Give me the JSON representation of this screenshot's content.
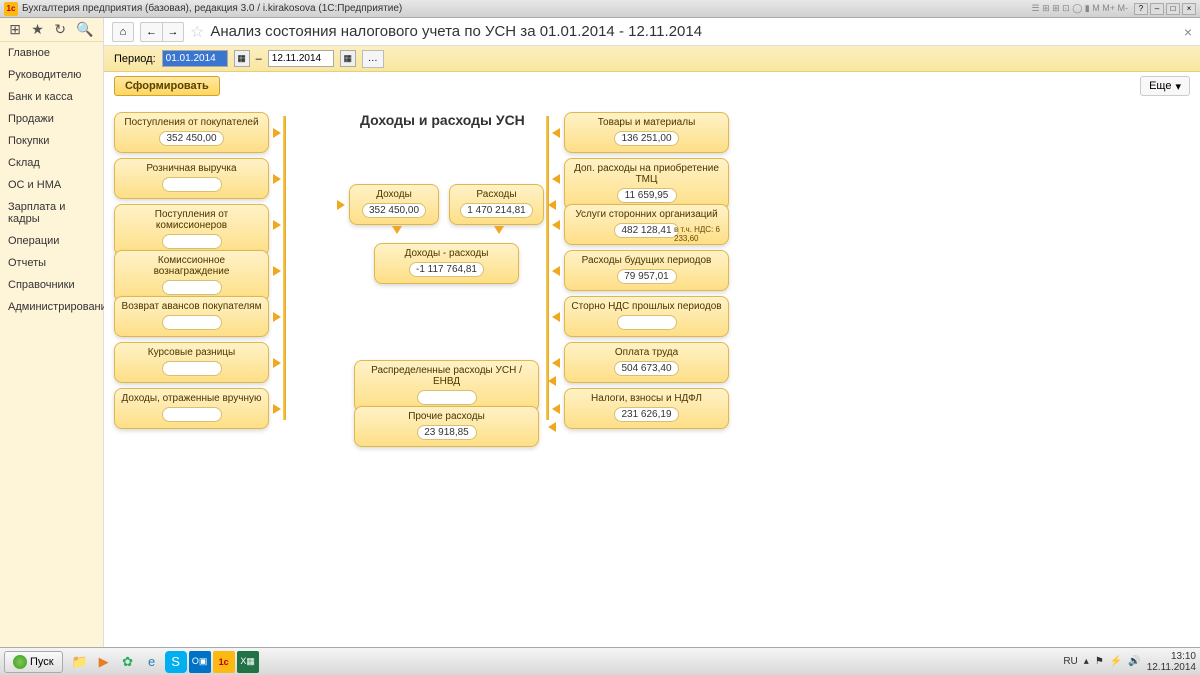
{
  "window": {
    "title": "Бухгалтерия предприятия (базовая), редакция 3.0 / i.kirakosova  (1С:Предприятие)"
  },
  "sidebar": {
    "items": [
      "Главное",
      "Руководителю",
      "Банк и касса",
      "Продажи",
      "Покупки",
      "Склад",
      "ОС и НМА",
      "Зарплата и кадры",
      "Операции",
      "Отчеты",
      "Справочники",
      "Администрирование"
    ]
  },
  "page": {
    "title": "Анализ состояния налогового учета по УСН за 01.01.2014 - 12.11.2014",
    "period_label": "Период:",
    "date_from": "01.01.2014",
    "date_to": "12.11.2014",
    "form_btn": "Сформировать",
    "more_btn": "Еще"
  },
  "diagram": {
    "title": "Доходы и расходы УСН",
    "left": [
      {
        "label": "Поступления от покупателей",
        "value": "352 450,00"
      },
      {
        "label": "Розничная выручка",
        "value": ""
      },
      {
        "label": "Поступления от комиссионеров",
        "value": ""
      },
      {
        "label": "Комиссионное вознаграждение",
        "value": ""
      },
      {
        "label": "Возврат авансов покупателям",
        "value": ""
      },
      {
        "label": "Курсовые разницы",
        "value": ""
      },
      {
        "label": "Доходы, отраженные вручную",
        "value": ""
      }
    ],
    "center_top": [
      {
        "label": "Доходы",
        "value": "352 450,00"
      },
      {
        "label": "Расходы",
        "value": "1 470 214,81"
      }
    ],
    "center_mid": {
      "label": "Доходы - расходы",
      "value": "-1 117 764,81"
    },
    "center_bottom": [
      {
        "label": "Распределенные расходы УСН / ЕНВД",
        "value": ""
      },
      {
        "label": "Прочие расходы",
        "value": "23 918,85"
      }
    ],
    "right": [
      {
        "label": "Товары и материалы",
        "value": "136 251,00"
      },
      {
        "label": "Доп. расходы на приобретение ТМЦ",
        "value": "11 659,95"
      },
      {
        "label": "Услуги сторонних организаций",
        "value": "482 128,41",
        "extra": "в т.ч. НДС: 6 233,60"
      },
      {
        "label": "Расходы будущих периодов",
        "value": "79 957,01"
      },
      {
        "label": "Сторно НДС прошлых периодов",
        "value": ""
      },
      {
        "label": "Оплата труда",
        "value": "504 673,40"
      },
      {
        "label": "Налоги, взносы и НДФЛ",
        "value": "231 626,19"
      }
    ]
  },
  "taskbar": {
    "start": "Пуск",
    "lang": "RU",
    "time": "13:10",
    "date": "12.11.2014"
  }
}
